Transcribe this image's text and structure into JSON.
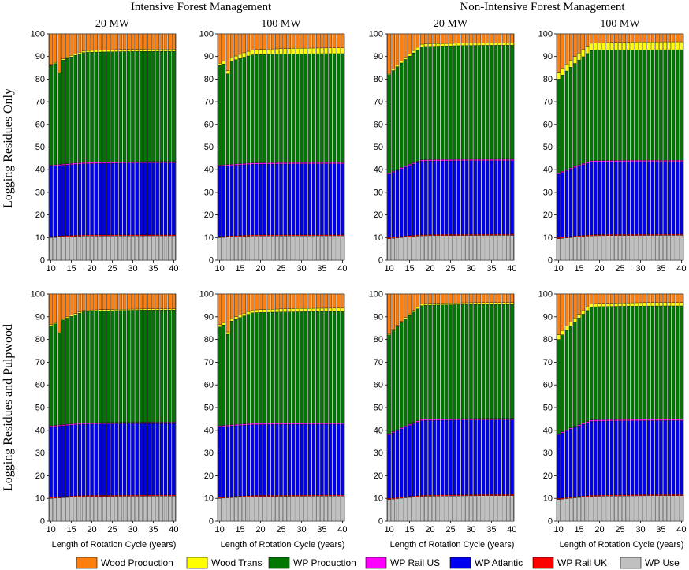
{
  "chart_data": {
    "type": "bar",
    "stacked": true,
    "column_titles": [
      "Intensive Forest Management",
      "Non-Intensive Forest Management"
    ],
    "capacity_labels": [
      "20 MW",
      "100 MW"
    ],
    "row_titles": [
      "Logging Residues Only",
      "Logging Residues and Pulpwood"
    ],
    "xlabel": "Length of Rotation Cycle (years)",
    "x_range": [
      10,
      40
    ],
    "x_ticks": [
      10,
      15,
      20,
      25,
      30,
      35,
      40
    ],
    "ylim": [
      0,
      100
    ],
    "y_ticks": [
      0,
      10,
      20,
      30,
      40,
      50,
      60,
      70,
      80,
      90,
      100
    ],
    "colors": {
      "Wood Production": "#ff7f0e",
      "Wood Trans": "#ffff00",
      "WP Production": "#007700",
      "WP Rail US": "#ff00ff",
      "WP Atlantic": "#0000ee",
      "WP Rail UK": "#ff0000",
      "WP Use": "#c0c0c0"
    },
    "legend": [
      "Wood Production",
      "Wood Trans",
      "WP Production",
      "WP Rail US",
      "WP Atlantic",
      "WP Rail UK",
      "WP Use"
    ],
    "stack_order": [
      "WP Use",
      "WP Rail UK",
      "WP Atlantic",
      "WP Rail US",
      "WP Production",
      "Wood Trans",
      "Wood Production"
    ],
    "panels": [
      {
        "row": 0,
        "col": 0,
        "title": "20 MW",
        "cumulative_approx": {
          "WP Use": [
            10.0,
            10.7,
            10.8
          ],
          "WP Rail UK": [
            10.5,
            11.2,
            11.3
          ],
          "WP Atlantic": [
            41.5,
            42.6,
            43.0
          ],
          "WP Rail US": [
            42.0,
            43.2,
            43.6
          ],
          "WP Production": [
            86.0,
            91.8,
            92.3
          ],
          "Wood Trans": [
            86.5,
            92.6,
            93.3
          ]
        },
        "early_notch_year": 12
      },
      {
        "row": 0,
        "col": 1,
        "title": "100 MW",
        "cumulative_approx": {
          "WP Use": [
            10.0,
            10.7,
            10.8
          ],
          "WP Rail UK": [
            10.5,
            11.2,
            11.3
          ],
          "WP Atlantic": [
            41.5,
            42.4,
            42.6
          ],
          "WP Rail US": [
            42.0,
            43.0,
            43.2
          ],
          "WP Production": [
            86.0,
            90.8,
            91.3
          ],
          "Wood Trans": [
            87.0,
            93.0,
            93.8
          ]
        },
        "early_notch_year": 12
      },
      {
        "row": 0,
        "col": 2,
        "title": "20 MW",
        "cumulative_approx": {
          "WP Use": [
            9.5,
            10.8,
            11.0
          ],
          "WP Rail UK": [
            10.0,
            11.3,
            11.5
          ],
          "WP Atlantic": [
            38.0,
            43.8,
            44.0
          ],
          "WP Rail US": [
            38.5,
            44.4,
            44.6
          ],
          "WP Production": [
            82.0,
            94.4,
            95.0
          ],
          "Wood Trans": [
            82.5,
            95.6,
            96.0
          ]
        },
        "early_notch_year": null
      },
      {
        "row": 0,
        "col": 3,
        "title": "100 MW",
        "cumulative_approx": {
          "WP Use": [
            9.5,
            10.8,
            11.0
          ],
          "WP Rail UK": [
            10.0,
            11.3,
            11.5
          ],
          "WP Atlantic": [
            38.0,
            43.4,
            43.6
          ],
          "WP Rail US": [
            38.5,
            44.0,
            44.2
          ],
          "WP Production": [
            80.0,
            92.8,
            93.0
          ],
          "Wood Trans": [
            83.0,
            96.0,
            96.5
          ]
        },
        "early_notch_year": null
      },
      {
        "row": 1,
        "col": 0,
        "title": "",
        "cumulative_approx": {
          "WP Use": [
            10.0,
            10.8,
            11.0
          ],
          "WP Rail UK": [
            10.5,
            11.3,
            11.5
          ],
          "WP Atlantic": [
            41.5,
            42.7,
            43.0
          ],
          "WP Rail US": [
            42.0,
            43.3,
            43.6
          ],
          "WP Production": [
            86.0,
            92.3,
            93.0
          ],
          "Wood Trans": [
            86.5,
            92.9,
            93.5
          ]
        },
        "early_notch_year": 12
      },
      {
        "row": 1,
        "col": 1,
        "title": "",
        "cumulative_approx": {
          "WP Use": [
            10.0,
            10.8,
            11.0
          ],
          "WP Rail UK": [
            10.5,
            11.3,
            11.5
          ],
          "WP Atlantic": [
            41.5,
            42.5,
            42.7
          ],
          "WP Rail US": [
            42.0,
            43.1,
            43.3
          ],
          "WP Production": [
            85.5,
            91.8,
            92.3
          ],
          "Wood Trans": [
            86.5,
            93.0,
            93.8
          ]
        },
        "early_notch_year": 12
      },
      {
        "row": 1,
        "col": 2,
        "title": "",
        "cumulative_approx": {
          "WP Use": [
            9.5,
            10.9,
            11.2
          ],
          "WP Rail UK": [
            10.0,
            11.4,
            11.7
          ],
          "WP Atlantic": [
            38.0,
            44.3,
            44.6
          ],
          "WP Rail US": [
            38.5,
            44.9,
            45.2
          ],
          "WP Production": [
            82.0,
            95.0,
            95.5
          ],
          "Wood Trans": [
            82.5,
            95.8,
            96.3
          ]
        },
        "early_notch_year": null
      },
      {
        "row": 1,
        "col": 3,
        "title": "",
        "cumulative_approx": {
          "WP Use": [
            9.5,
            10.9,
            11.2
          ],
          "WP Rail UK": [
            10.0,
            11.4,
            11.7
          ],
          "WP Atlantic": [
            38.0,
            44.0,
            44.3
          ],
          "WP Rail US": [
            38.5,
            44.6,
            44.9
          ],
          "WP Production": [
            80.0,
            94.4,
            94.8
          ],
          "Wood Trans": [
            82.0,
            95.8,
            96.3
          ]
        },
        "early_notch_year": null
      }
    ],
    "note": "cumulative_approx gives the cumulative top (%) of each stacked segment at years 10, 25 and 40; Wood Production fills up to 100%."
  }
}
